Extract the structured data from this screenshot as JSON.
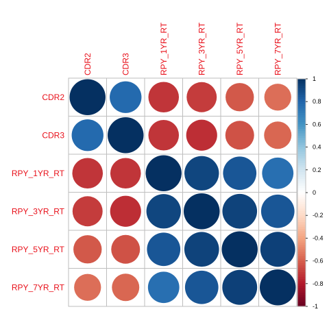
{
  "chart_data": {
    "type": "heatmap",
    "style": "circle",
    "variables": [
      "CDR2",
      "CDR3",
      "RPY_1YR_RT",
      "RPY_3YR_RT",
      "RPY_5YR_RT",
      "RPY_7YR_RT"
    ],
    "matrix": [
      [
        1.0,
        0.78,
        -0.72,
        -0.7,
        -0.62,
        -0.56
      ],
      [
        0.78,
        1.0,
        -0.72,
        -0.74,
        -0.64,
        -0.58
      ],
      [
        -0.72,
        -0.72,
        1.0,
        0.92,
        0.86,
        0.76
      ],
      [
        -0.7,
        -0.74,
        0.92,
        1.0,
        0.93,
        0.86
      ],
      [
        -0.62,
        -0.64,
        0.86,
        0.93,
        1.0,
        0.94
      ],
      [
        -0.56,
        -0.58,
        0.76,
        0.86,
        0.94,
        1.0
      ]
    ],
    "colorbar": {
      "range": [
        -1,
        1
      ],
      "ticks": [
        "-1",
        "-0.8",
        "-0.6",
        "-0.4",
        "-0.2",
        "0",
        "0.2",
        "0.4",
        "0.6",
        "0.8",
        "1"
      ],
      "colors": [
        "#67001f",
        "#b2182b",
        "#d6604d",
        "#f4a582",
        "#fddbc7",
        "#ffffff",
        "#d1e5f0",
        "#92c5de",
        "#4393c3",
        "#2166ac",
        "#053061"
      ]
    },
    "label_color": "#e8101a",
    "grid": true
  }
}
